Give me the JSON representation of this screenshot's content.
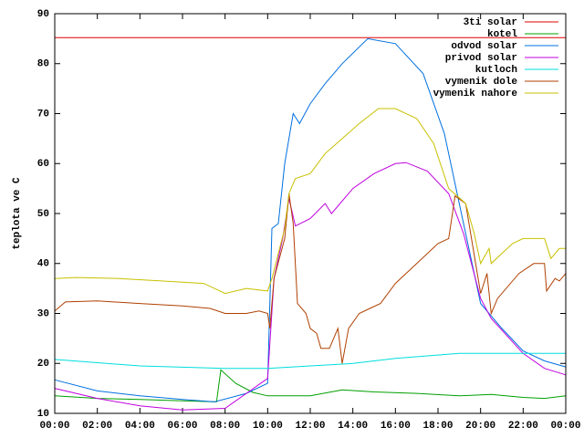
{
  "chart_data": {
    "type": "line",
    "ylabel": "teplota ve C",
    "xlim": [
      0,
      24
    ],
    "ylim": [
      10,
      90
    ],
    "xticks": [
      {
        "value": 0,
        "label": "00:00"
      },
      {
        "value": 2,
        "label": "02:00"
      },
      {
        "value": 4,
        "label": "04:00"
      },
      {
        "value": 6,
        "label": "06:00"
      },
      {
        "value": 8,
        "label": "08:00"
      },
      {
        "value": 10,
        "label": "10:00"
      },
      {
        "value": 12,
        "label": "12:00"
      },
      {
        "value": 14,
        "label": "14:00"
      },
      {
        "value": 16,
        "label": "16:00"
      },
      {
        "value": 18,
        "label": "18:00"
      },
      {
        "value": 20,
        "label": "20:00"
      },
      {
        "value": 22,
        "label": "22:00"
      },
      {
        "value": 24,
        "label": "00:00"
      }
    ],
    "yticks": [
      10,
      20,
      30,
      40,
      50,
      60,
      70,
      80,
      90
    ],
    "legend": "top-right",
    "series": [
      {
        "name": "3ti solar",
        "color": "#e00000",
        "x": [
          0,
          24
        ],
        "values": [
          85.2,
          85.2
        ]
      },
      {
        "name": "kotel",
        "color": "#00a000",
        "x": [
          0,
          2,
          4,
          6,
          7.6,
          7.8,
          8.5,
          9.3,
          10,
          12,
          13.5,
          15,
          17,
          19,
          20.5,
          22,
          23,
          24
        ],
        "values": [
          13.5,
          13,
          12.8,
          12.5,
          12.3,
          18.7,
          16,
          14.2,
          13.5,
          13.5,
          14.7,
          14.3,
          14,
          13.5,
          13.8,
          13.2,
          13,
          13.5
        ]
      },
      {
        "name": "odvod solar",
        "color": "#0070e0",
        "x": [
          0,
          2,
          4,
          6,
          7.5,
          9,
          10,
          10.2,
          10.5,
          10.8,
          11.2,
          11.5,
          12,
          12.7,
          13.5,
          14.7,
          16,
          17.3,
          18.3,
          19,
          20,
          21,
          22,
          23,
          24
        ],
        "values": [
          16.7,
          14.5,
          13.5,
          12.8,
          12.3,
          14,
          16,
          47,
          48,
          60,
          70,
          68,
          72,
          76,
          80,
          85,
          84,
          78,
          66,
          52,
          32,
          27,
          22.5,
          20.5,
          19.3
        ]
      },
      {
        "name": "privod solar",
        "color": "#c000e0",
        "x": [
          0,
          2,
          4,
          6,
          8,
          9,
          10,
          10.3,
          10.7,
          11,
          11.3,
          12,
          12.7,
          13,
          14,
          15,
          16,
          16.5,
          17.5,
          18.5,
          19.2,
          20,
          20.5,
          22,
          23,
          24
        ],
        "values": [
          15,
          13,
          11.5,
          10.7,
          11,
          14,
          17,
          37,
          45,
          53,
          47.5,
          49,
          52,
          50,
          55,
          58,
          60,
          60.2,
          58.5,
          54,
          46,
          33,
          29,
          22,
          19,
          17.7
        ]
      },
      {
        "name": "kutloch",
        "color": "#00dddd",
        "x": [
          0,
          4,
          8,
          10,
          12,
          14,
          16,
          19,
          24
        ],
        "values": [
          20.8,
          19.5,
          19,
          19,
          19.5,
          20,
          21,
          22,
          22
        ]
      },
      {
        "name": "vymenik dole",
        "color": "#b04000",
        "x": [
          0,
          0.5,
          2,
          4,
          6,
          7.3,
          8,
          9,
          9.6,
          10,
          10.1,
          10.3,
          10.8,
          11,
          11.2,
          11.4,
          11.8,
          12,
          12.3,
          12.5,
          12.9,
          13.3,
          13.5,
          13.8,
          14.3,
          14.8,
          15.3,
          16,
          17,
          18,
          18.5,
          18.8,
          19.3,
          20,
          20.3,
          20.5,
          20.8,
          21.8,
          22.5,
          23,
          23.1,
          23.5,
          23.7,
          24
        ],
        "values": [
          30.5,
          32.3,
          32.5,
          32,
          31.5,
          31,
          30,
          30,
          30.5,
          30,
          27,
          37,
          45,
          54,
          48,
          32,
          30,
          27,
          26,
          23,
          23,
          27,
          20,
          27,
          30,
          31,
          32,
          36,
          40,
          44,
          45,
          53.5,
          52,
          34,
          38,
          30,
          33,
          38,
          40,
          40,
          34.5,
          37,
          36.5,
          38
        ]
      },
      {
        "name": "vymenik nahore",
        "color": "#c8c000",
        "x": [
          0,
          1,
          3,
          5,
          7,
          7.5,
          8,
          9,
          10,
          10.2,
          10.8,
          11,
          11.3,
          12,
          12.7,
          13.5,
          14.3,
          15.2,
          16,
          17,
          17.8,
          18.5,
          19.3,
          19.7,
          20,
          20.4,
          20.5,
          21,
          21.5,
          22,
          23,
          23.3,
          23.7,
          24
        ],
        "values": [
          37,
          37.2,
          37,
          36.5,
          36,
          35,
          34,
          35,
          34.5,
          37,
          47,
          54,
          57,
          58,
          62,
          65,
          68,
          71,
          71,
          69,
          64,
          55,
          52,
          46,
          40,
          43,
          40,
          42,
          44,
          45,
          45,
          41,
          43,
          43
        ]
      }
    ]
  }
}
